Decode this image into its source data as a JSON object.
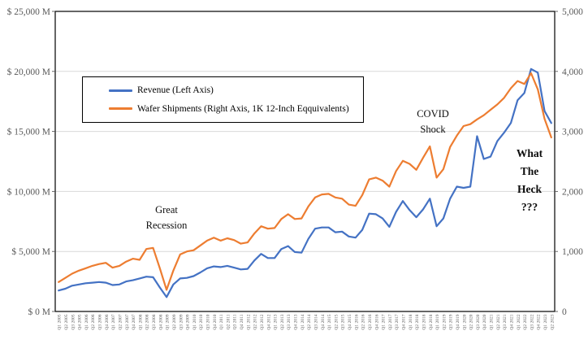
{
  "chart_data": {
    "type": "line",
    "title": "",
    "grid": "horizontal",
    "legend_position": "upper-left",
    "categories": [
      "Q1 2005",
      "Q2 2005",
      "Q3 2005",
      "Q4 2005",
      "Q1 2006",
      "Q2 2006",
      "Q3 2006",
      "Q4 2006",
      "Q1 2007",
      "Q2 2007",
      "Q3 2007",
      "Q4 2007",
      "Q1 2008",
      "Q2 2008",
      "Q3 2008",
      "Q4 2008",
      "Q1 2009",
      "Q2 2009",
      "Q3 2009",
      "Q4 2009",
      "Q1 2010",
      "Q2 2010",
      "Q3 2010",
      "Q4 2010",
      "Q1 2011",
      "Q2 2011",
      "Q3 2011",
      "Q4 2011",
      "Q1 2012",
      "Q2 2012",
      "Q3 2012",
      "Q4 2012",
      "Q1 2013",
      "Q2 2013",
      "Q3 2013",
      "Q4 2013",
      "Q1 2014",
      "Q2 2014",
      "Q3 2014",
      "Q4 2014",
      "Q1 2015",
      "Q2 2015",
      "Q3 2015",
      "Q4 2015",
      "Q1 2016",
      "Q2 2016",
      "Q3 2016",
      "Q4 2016",
      "Q1 2017",
      "Q2 2017",
      "Q3 2017",
      "Q4 2017",
      "Q1 2018",
      "Q2 2018",
      "Q3 2018",
      "Q4 2018",
      "Q1 2019",
      "Q2 2019",
      "Q3 2019",
      "Q4 2019",
      "Q1 2020",
      "Q2 2020",
      "Q3 2020",
      "Q4 2020",
      "Q1 2021",
      "Q2 2021",
      "Q3 2021",
      "Q4 2021",
      "Q1 2022",
      "Q2 2022",
      "Q3 2022",
      "Q4 2022",
      "Q1 2023",
      "Q2 2023"
    ],
    "series": [
      {
        "name": "Revenue (Left Axis)",
        "axis": "left",
        "color": "#4472C4",
        "values": [
          1750,
          1900,
          2150,
          2250,
          2350,
          2400,
          2450,
          2400,
          2200,
          2250,
          2500,
          2600,
          2750,
          2900,
          2850,
          2000,
          1200,
          2250,
          2750,
          2800,
          2950,
          3250,
          3600,
          3750,
          3700,
          3800,
          3650,
          3500,
          3550,
          4250,
          4800,
          4450,
          4450,
          5200,
          5450,
          4950,
          4900,
          6050,
          6900,
          7000,
          7000,
          6600,
          6650,
          6250,
          6150,
          6800,
          8150,
          8100,
          7750,
          7050,
          8300,
          9200,
          8450,
          7850,
          8500,
          9400,
          7100,
          7750,
          9400,
          10400,
          10300,
          10400,
          14600,
          12700,
          12900,
          14200,
          14900,
          15700,
          17600,
          18200,
          20200,
          19900,
          16700,
          15700
        ]
      },
      {
        "name": "Wafer Shipments (Right Axis, 1K 12-Inch Eqquivalents)",
        "axis": "right",
        "color": "#ED7D31",
        "values": [
          490,
          560,
          630,
          680,
          720,
          760,
          790,
          810,
          730,
          760,
          830,
          880,
          860,
          1040,
          1060,
          720,
          360,
          680,
          950,
          1000,
          1020,
          1100,
          1180,
          1230,
          1180,
          1220,
          1190,
          1130,
          1150,
          1300,
          1420,
          1380,
          1390,
          1540,
          1620,
          1540,
          1550,
          1750,
          1900,
          1950,
          1960,
          1900,
          1880,
          1780,
          1760,
          1940,
          2200,
          2230,
          2180,
          2080,
          2340,
          2510,
          2460,
          2360,
          2560,
          2750,
          2230,
          2370,
          2740,
          2930,
          3090,
          3120,
          3200,
          3270,
          3360,
          3450,
          3560,
          3720,
          3840,
          3790,
          3970,
          3700,
          3210,
          2900
        ]
      }
    ],
    "left_axis": {
      "min": 0,
      "max": 25000,
      "tick_values": [
        0,
        5000,
        10000,
        15000,
        20000,
        25000
      ],
      "tick_labels": [
        "$ 0 M",
        "$ 5,000 M",
        "$ 10,000 M",
        "$ 15,000 M",
        "$ 20,000 M",
        "$ 25,000 M"
      ]
    },
    "right_axis": {
      "min": 0,
      "max": 5000,
      "tick_values": [
        0,
        1000,
        2000,
        3000,
        4000,
        5000
      ],
      "tick_labels": [
        "0",
        "1,000",
        "2,000",
        "3,000",
        "4,000",
        "5,000"
      ]
    },
    "annotations": [
      {
        "lines": [
          "Great",
          "Recession"
        ],
        "bold": false
      },
      {
        "lines": [
          "COVID",
          "Shock"
        ],
        "bold": false
      },
      {
        "lines": [
          "What",
          "The",
          "Heck",
          "???"
        ],
        "bold": true
      }
    ],
    "colors": {
      "grid": "#D9D9D9",
      "axis_text": "#595959",
      "plot_border": "#000000"
    }
  }
}
